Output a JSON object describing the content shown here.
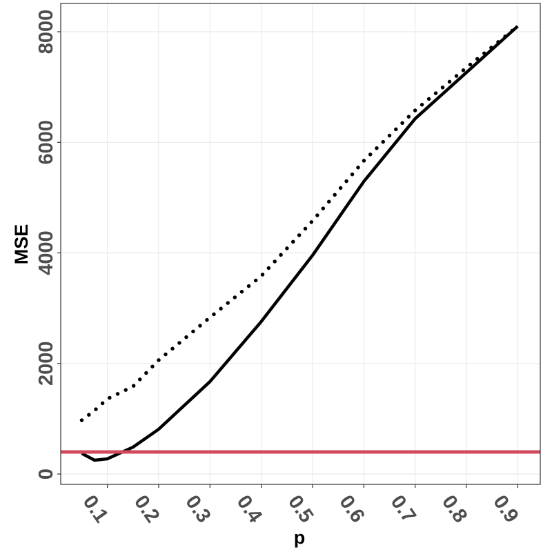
{
  "chart_data": {
    "type": "line",
    "x_label": "p",
    "y_label": "MSE",
    "x": [
      0.05,
      0.075,
      0.1,
      0.15,
      0.2,
      0.3,
      0.4,
      0.5,
      0.6,
      0.7,
      0.8,
      0.9
    ],
    "series": [
      {
        "color": "#000000",
        "dash": "solid",
        "values": [
          374,
          250,
          275,
          487,
          811,
          1672,
          2758,
          3956,
          5292,
          6427,
          7263,
          8100
        ]
      },
      {
        "color": "#000000",
        "dash": "dotted",
        "values": [
          973,
          1150,
          1360,
          1585,
          2060,
          2833,
          3582,
          4580,
          5666,
          6577,
          7351,
          8100
        ]
      }
    ],
    "hline": {
      "value": 400,
      "color": "#d1495b"
    },
    "xlim": [
      0.009,
      0.944
    ],
    "xticks": [
      0.1,
      0.2,
      0.3,
      0.4,
      0.5,
      0.6,
      0.7,
      0.8,
      0.9
    ],
    "ylim": [
      -187,
      8512
    ],
    "yticks": [
      0,
      2000,
      4000,
      6000,
      8000
    ],
    "grid": true
  }
}
